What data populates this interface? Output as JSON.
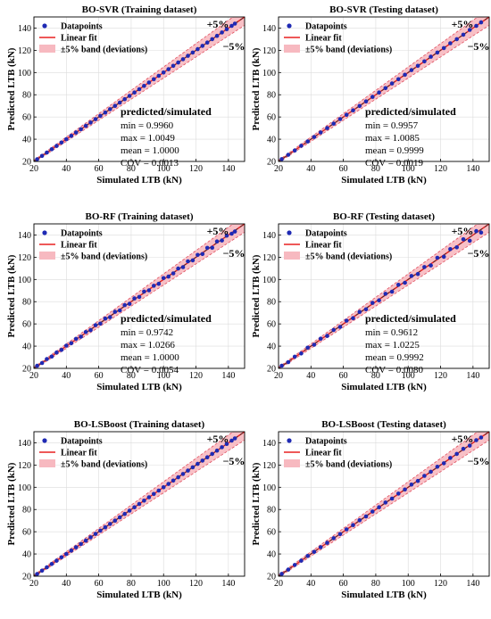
{
  "chart_data": [
    {
      "type": "scatter",
      "title": "BO-SVR (Training dataset)",
      "xlabel": "Simulated LTB (kN)",
      "ylabel": "Predicted LTB (kN)",
      "xlim": [
        20,
        150
      ],
      "ylim": [
        20,
        150
      ],
      "xticks": [
        20,
        40,
        60,
        80,
        100,
        120,
        140
      ],
      "yticks": [
        20,
        40,
        60,
        80,
        100,
        120,
        140
      ],
      "grid": true,
      "legend_position": "top-left",
      "legend": [
        "Datapoints",
        "Linear fit",
        "±5% band (deviations)"
      ],
      "band_labels": {
        "upper": "+5%",
        "lower": "−5%"
      },
      "stats": {
        "heading": "predicted/simulated",
        "lines": [
          "min = 0.9960",
          "max = 1.0049",
          "mean = 1.0000",
          "COV = 0.0013"
        ]
      },
      "x": [
        22,
        25,
        28,
        31,
        34,
        37,
        40,
        43,
        46,
        49,
        52,
        55,
        58,
        61,
        64,
        67,
        70,
        73,
        76,
        79,
        82,
        85,
        88,
        91,
        94,
        97,
        100,
        103,
        106,
        109,
        112,
        115,
        118,
        121,
        124,
        127,
        130,
        133,
        136,
        139,
        142,
        144
      ],
      "y": [
        22,
        25,
        28,
        31,
        34,
        37,
        40,
        43,
        46,
        49,
        52,
        55,
        58,
        61,
        64,
        67,
        70,
        73,
        76,
        79,
        82,
        85,
        88,
        91,
        94,
        97,
        100,
        103,
        106,
        109,
        112,
        115,
        118,
        121,
        124,
        127,
        130,
        133,
        136,
        139,
        142,
        144
      ]
    },
    {
      "type": "scatter",
      "title": "BO-SVR (Testing dataset)",
      "xlabel": "Simulated LTB (kN)",
      "ylabel": "Predicted LTB (kN)",
      "xlim": [
        20,
        150
      ],
      "ylim": [
        20,
        150
      ],
      "xticks": [
        20,
        40,
        60,
        80,
        100,
        120,
        140
      ],
      "yticks": [
        20,
        40,
        60,
        80,
        100,
        120,
        140
      ],
      "grid": true,
      "legend_position": "top-left",
      "legend": [
        "Datapoints",
        "Linear fit",
        "±5% band (deviations)"
      ],
      "band_labels": {
        "upper": "+5%",
        "lower": "−5%"
      },
      "stats": {
        "heading": "predicted/simulated",
        "lines": [
          "min = 0.9957",
          "max = 1.0085",
          "mean = 0.9999",
          "COV = 0.0019"
        ]
      },
      "x": [
        22,
        26,
        30,
        34,
        38,
        42,
        46,
        50,
        54,
        58,
        62,
        66,
        70,
        74,
        78,
        82,
        86,
        90,
        94,
        98,
        102,
        106,
        110,
        114,
        118,
        122,
        126,
        130,
        134,
        138,
        142,
        145
      ],
      "y": [
        22.1,
        26,
        29.9,
        34.1,
        38,
        42,
        46.1,
        50,
        54,
        58.1,
        62,
        66,
        69.9,
        74,
        78.1,
        82,
        86,
        90.1,
        94,
        98,
        102.2,
        106,
        110,
        114.2,
        118,
        122,
        126.3,
        130,
        134,
        138.4,
        142,
        145.1
      ]
    },
    {
      "type": "scatter",
      "title": "BO-RF (Training dataset)",
      "xlabel": "Simulated LTB (kN)",
      "ylabel": "Predicted LTB (kN)",
      "xlim": [
        20,
        150
      ],
      "ylim": [
        20,
        150
      ],
      "xticks": [
        20,
        40,
        60,
        80,
        100,
        120,
        140
      ],
      "yticks": [
        20,
        40,
        60,
        80,
        100,
        120,
        140
      ],
      "grid": true,
      "legend_position": "top-left",
      "legend": [
        "Datapoints",
        "Linear fit",
        "±5% band (deviations)"
      ],
      "band_labels": {
        "upper": "+5%",
        "lower": "−5%"
      },
      "stats": {
        "heading": "predicted/simulated",
        "lines": [
          "min = 0.9742",
          "max = 1.0266",
          "mean = 1.0000",
          "COV = 0.0054"
        ]
      },
      "x": [
        22,
        25,
        28,
        31,
        34,
        37,
        40,
        43,
        46,
        49,
        52,
        55,
        58,
        61,
        64,
        67,
        70,
        73,
        76,
        79,
        82,
        85,
        88,
        91,
        94,
        97,
        100,
        103,
        106,
        109,
        112,
        115,
        118,
        121,
        124,
        127,
        130,
        133,
        136,
        139,
        142,
        144
      ],
      "y": [
        22.3,
        24.8,
        28.4,
        30.7,
        34.3,
        36.6,
        40.5,
        42.6,
        46.6,
        48.5,
        52.7,
        54.4,
        58.8,
        60.3,
        64.8,
        66.1,
        70.9,
        72.2,
        76.9,
        78.1,
        82.9,
        84.3,
        89.1,
        90.2,
        94.3,
        96.1,
        101.2,
        102.6,
        105.5,
        109.8,
        111.1,
        116.3,
        117.2,
        122.1,
        122.9,
        128.4,
        128.6,
        134.2,
        135.1,
        139.4,
        141.2,
        143.1
      ]
    },
    {
      "type": "scatter",
      "title": "BO-RF (Testing dataset)",
      "xlabel": "Simulated LTB (kN)",
      "ylabel": "Predicted LTB (kN)",
      "xlim": [
        20,
        150
      ],
      "ylim": [
        20,
        150
      ],
      "xticks": [
        20,
        40,
        60,
        80,
        100,
        120,
        140
      ],
      "yticks": [
        20,
        40,
        60,
        80,
        100,
        120,
        140
      ],
      "grid": true,
      "legend_position": "top-left",
      "legend": [
        "Datapoints",
        "Linear fit",
        "±5% band (deviations)"
      ],
      "band_labels": {
        "upper": "+5%",
        "lower": "−5%"
      },
      "stats": {
        "heading": "predicted/simulated",
        "lines": [
          "min = 0.9612",
          "max = 1.0225",
          "mean = 0.9992",
          "COV = 0.0080"
        ]
      },
      "x": [
        22,
        26,
        30,
        34,
        38,
        42,
        46,
        50,
        54,
        58,
        62,
        66,
        70,
        74,
        78,
        82,
        86,
        90,
        94,
        98,
        102,
        106,
        110,
        114,
        118,
        122,
        126,
        130,
        134,
        138,
        142,
        145
      ],
      "y": [
        22.4,
        25.6,
        30.5,
        33.4,
        38.6,
        41.3,
        46.7,
        49.2,
        54.6,
        57.3,
        62.9,
        65.2,
        70.8,
        73.1,
        78.9,
        81.2,
        87.1,
        89.0,
        95.2,
        97.0,
        103.1,
        104.9,
        111.2,
        112.6,
        119.5,
        120.4,
        127.3,
        128.9,
        136.1,
        134.8,
        143.5,
        142.2
      ]
    },
    {
      "type": "scatter",
      "title": "BO-LSBoost (Training dataset)",
      "xlabel": "Simulated LTB (kN)",
      "ylabel": "Predicted LTB (kN)",
      "xlim": [
        20,
        150
      ],
      "ylim": [
        20,
        150
      ],
      "xticks": [
        20,
        40,
        60,
        80,
        100,
        120,
        140
      ],
      "yticks": [
        20,
        40,
        60,
        80,
        100,
        120,
        140
      ],
      "grid": true,
      "legend_position": "top-left",
      "legend": [
        "Datapoints",
        "Linear fit",
        "±5% band (deviations)"
      ],
      "band_labels": {
        "upper": "+5%",
        "lower": "−5%"
      },
      "stats": null,
      "x": [
        22,
        25,
        28,
        31,
        34,
        37,
        40,
        43,
        46,
        49,
        52,
        55,
        58,
        61,
        64,
        67,
        70,
        73,
        76,
        79,
        82,
        85,
        88,
        91,
        94,
        97,
        100,
        103,
        106,
        109,
        112,
        115,
        118,
        121,
        124,
        127,
        130,
        133,
        136,
        139,
        142,
        144
      ],
      "y": [
        22,
        25,
        28,
        31,
        34,
        37,
        40,
        43,
        46,
        49,
        52,
        55,
        58,
        61,
        64,
        67,
        70,
        73,
        76,
        79,
        82,
        85,
        88,
        91,
        94,
        97,
        100,
        103,
        106,
        109,
        112,
        115,
        118,
        121,
        124,
        127,
        130,
        133,
        136,
        139,
        142,
        144
      ]
    },
    {
      "type": "scatter",
      "title": "BO-LSBoost (Testing dataset)",
      "xlabel": "Simulated LTB (kN)",
      "ylabel": "Predicted LTB (kN)",
      "xlim": [
        20,
        150
      ],
      "ylim": [
        20,
        150
      ],
      "xticks": [
        20,
        40,
        60,
        80,
        100,
        120,
        140
      ],
      "yticks": [
        20,
        40,
        60,
        80,
        100,
        120,
        140
      ],
      "grid": true,
      "legend_position": "top-left",
      "legend": [
        "Datapoints",
        "Linear fit",
        "±5% band (deviations)"
      ],
      "band_labels": {
        "upper": "+5%",
        "lower": "−5%"
      },
      "stats": null,
      "x": [
        22,
        26,
        30,
        34,
        38,
        42,
        46,
        50,
        54,
        58,
        62,
        66,
        70,
        74,
        78,
        82,
        86,
        90,
        94,
        98,
        102,
        106,
        110,
        114,
        118,
        122,
        126,
        130,
        134,
        138,
        142,
        145
      ],
      "y": [
        22.1,
        25.9,
        30.1,
        34,
        38.2,
        41.9,
        46.1,
        50,
        54.2,
        57.9,
        62.1,
        66,
        70.3,
        73.8,
        78.2,
        82,
        86.3,
        89.8,
        94.3,
        98,
        102.4,
        105.7,
        110.3,
        114,
        118.5,
        121.6,
        126.4,
        130,
        134.6,
        137.5,
        142.4,
        144.8
      ]
    }
  ]
}
